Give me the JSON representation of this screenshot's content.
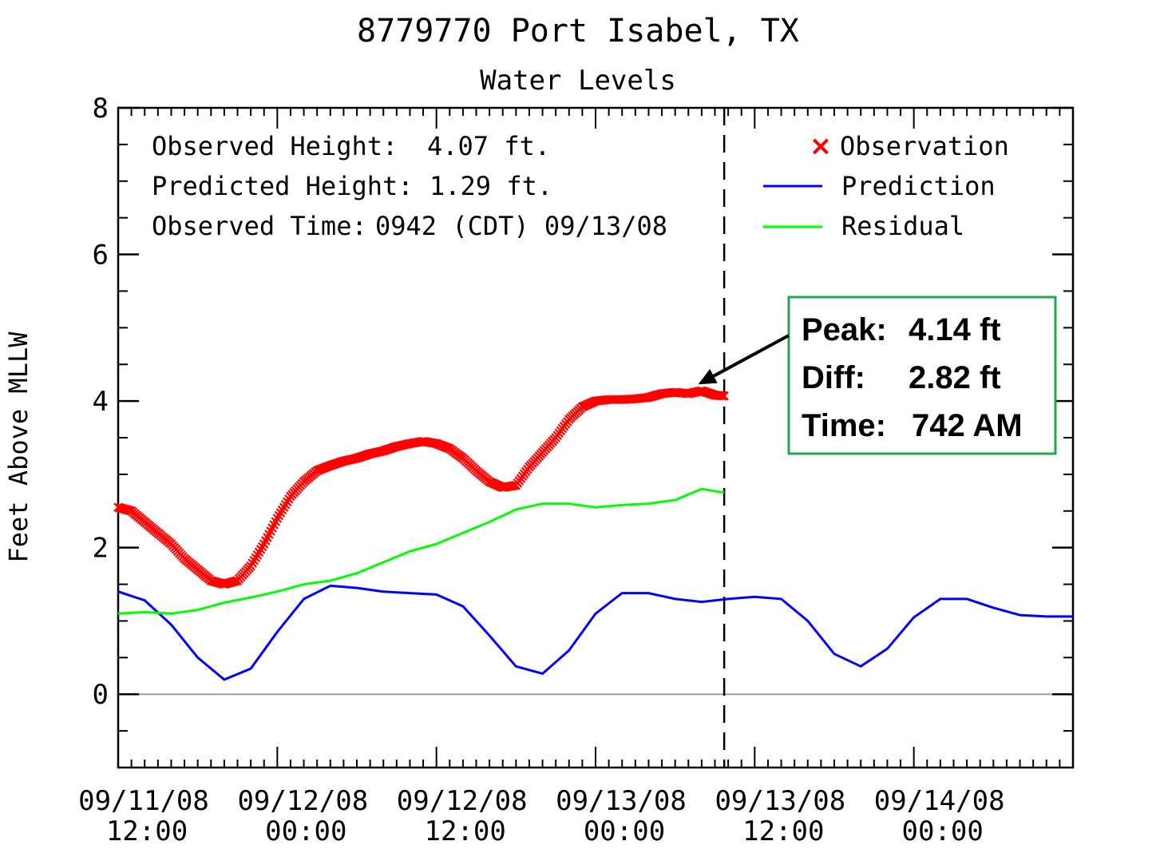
{
  "chart_data": {
    "type": "line",
    "title": "8779770 Port Isabel, TX",
    "subtitle": "Water Levels",
    "ylabel": "Feet Above MLLW",
    "ylim": [
      -1,
      8
    ],
    "yticks": [
      "0",
      "2",
      "4",
      "6",
      "8"
    ],
    "xlim": [
      "09/11/08 12:00",
      "09/14/08 12:00"
    ],
    "xticks": [
      {
        "date": "09/11/08",
        "time": "12:00"
      },
      {
        "date": "09/12/08",
        "time": "00:00"
      },
      {
        "date": "09/12/08",
        "time": "12:00"
      },
      {
        "date": "09/13/08",
        "time": "00:00"
      },
      {
        "date": "09/13/08",
        "time": "12:00"
      },
      {
        "date": "09/14/08",
        "time": "00:00"
      }
    ],
    "x_unit": "hours after 09/11/08 12:00",
    "observed_time_marker": 45.7,
    "info": {
      "observed_height_label": "Observed Height:",
      "observed_height_value": "4.07 ft.",
      "predicted_height_label": "Predicted Height:",
      "predicted_height_value": "1.29 ft.",
      "observed_time_label": "Observed Time:",
      "observed_time_value": "0942 (CDT) 09/13/08"
    },
    "legend": {
      "placement": "top-right",
      "observation": "Observation",
      "prediction": "Prediction",
      "residual": "Residual"
    },
    "series": [
      {
        "name": "Observation",
        "color": "#ff0000",
        "marker": "x",
        "x": [
          0,
          1,
          2,
          3,
          4,
          5,
          6,
          7,
          8,
          9,
          10,
          11,
          12,
          13,
          14,
          15,
          16,
          17,
          18,
          19,
          20,
          21,
          22,
          23,
          24,
          25,
          26,
          27,
          28,
          29,
          30,
          31,
          32,
          33,
          34,
          35,
          36,
          37,
          38,
          39,
          40,
          41,
          42,
          43,
          44,
          45,
          45.7
        ],
        "y": [
          2.55,
          2.5,
          2.35,
          2.2,
          2.05,
          1.85,
          1.7,
          1.55,
          1.5,
          1.55,
          1.75,
          2.05,
          2.4,
          2.7,
          2.9,
          3.05,
          3.12,
          3.18,
          3.22,
          3.28,
          3.32,
          3.38,
          3.42,
          3.45,
          3.42,
          3.35,
          3.22,
          3.05,
          2.9,
          2.82,
          2.85,
          3.1,
          3.3,
          3.5,
          3.75,
          3.92,
          4.0,
          4.02,
          4.02,
          4.03,
          4.05,
          4.1,
          4.12,
          4.1,
          4.14,
          4.08,
          4.07
        ]
      },
      {
        "name": "Prediction",
        "color": "#0000ff",
        "x": [
          0,
          2,
          4,
          6,
          8,
          10,
          12,
          14,
          16,
          18,
          20,
          22,
          24,
          26,
          28,
          30,
          32,
          34,
          36,
          38,
          40,
          42,
          44,
          46,
          48,
          50,
          52,
          54,
          56,
          58,
          60,
          62,
          64,
          66,
          68,
          70,
          72
        ],
        "y": [
          1.4,
          1.28,
          0.95,
          0.5,
          0.2,
          0.35,
          0.85,
          1.3,
          1.48,
          1.45,
          1.4,
          1.38,
          1.36,
          1.2,
          0.8,
          0.38,
          0.28,
          0.6,
          1.1,
          1.38,
          1.38,
          1.3,
          1.26,
          1.3,
          1.33,
          1.3,
          1.0,
          0.55,
          0.38,
          0.62,
          1.05,
          1.3,
          1.3,
          1.18,
          1.08,
          1.06,
          1.06
        ]
      },
      {
        "name": "Residual",
        "color": "#00ff00",
        "x": [
          0,
          2,
          4,
          6,
          8,
          10,
          12,
          14,
          16,
          18,
          20,
          22,
          24,
          26,
          28,
          30,
          32,
          34,
          36,
          38,
          40,
          42,
          44,
          45.7
        ],
        "y": [
          1.1,
          1.12,
          1.1,
          1.15,
          1.25,
          1.32,
          1.4,
          1.5,
          1.55,
          1.65,
          1.8,
          1.95,
          2.05,
          2.2,
          2.35,
          2.52,
          2.6,
          2.6,
          2.55,
          2.58,
          2.6,
          2.65,
          2.8,
          2.75
        ]
      }
    ],
    "zero_line_color": "#a0a0a0"
  },
  "callout": {
    "peak_label": "Peak:",
    "peak_value": "4.14 ft",
    "diff_label": "Diff:",
    "diff_value": "2.82 ft",
    "time_label": "Time:",
    "time_value": "742 AM",
    "border_color": "#22a84a",
    "peak_point": {
      "x": 43.5,
      "y": 4.14
    }
  }
}
